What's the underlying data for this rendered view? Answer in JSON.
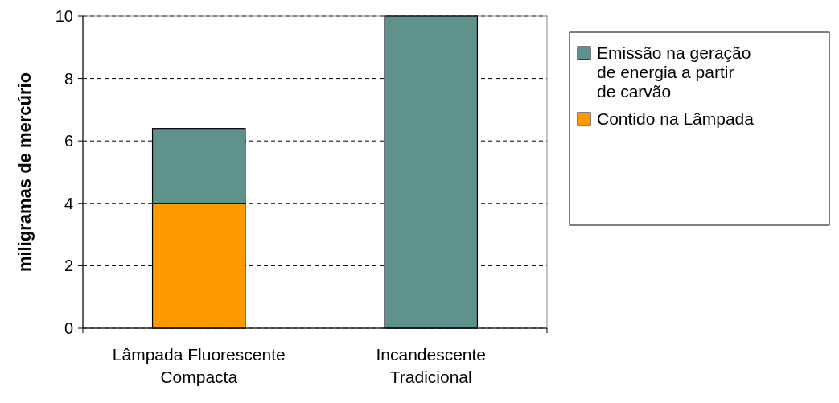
{
  "chart_data": {
    "type": "bar",
    "stacked": true,
    "ylabel": "miligramas de mercúrio",
    "categories": [
      "Lâmpada Fluorescente Compacta",
      "Incandescente Tradicional"
    ],
    "series": [
      {
        "name": "Contido na Lâmpada",
        "color": "#ff9900",
        "values": [
          4,
          0
        ]
      },
      {
        "name": "Emissão na geração de energia a partir de carvão",
        "color": "#5f918d",
        "values": [
          2.4,
          10
        ]
      }
    ],
    "ylim": [
      0,
      10
    ],
    "yticks": [
      0,
      2,
      4,
      6,
      8,
      10
    ],
    "grid": "y",
    "legend": "right"
  }
}
